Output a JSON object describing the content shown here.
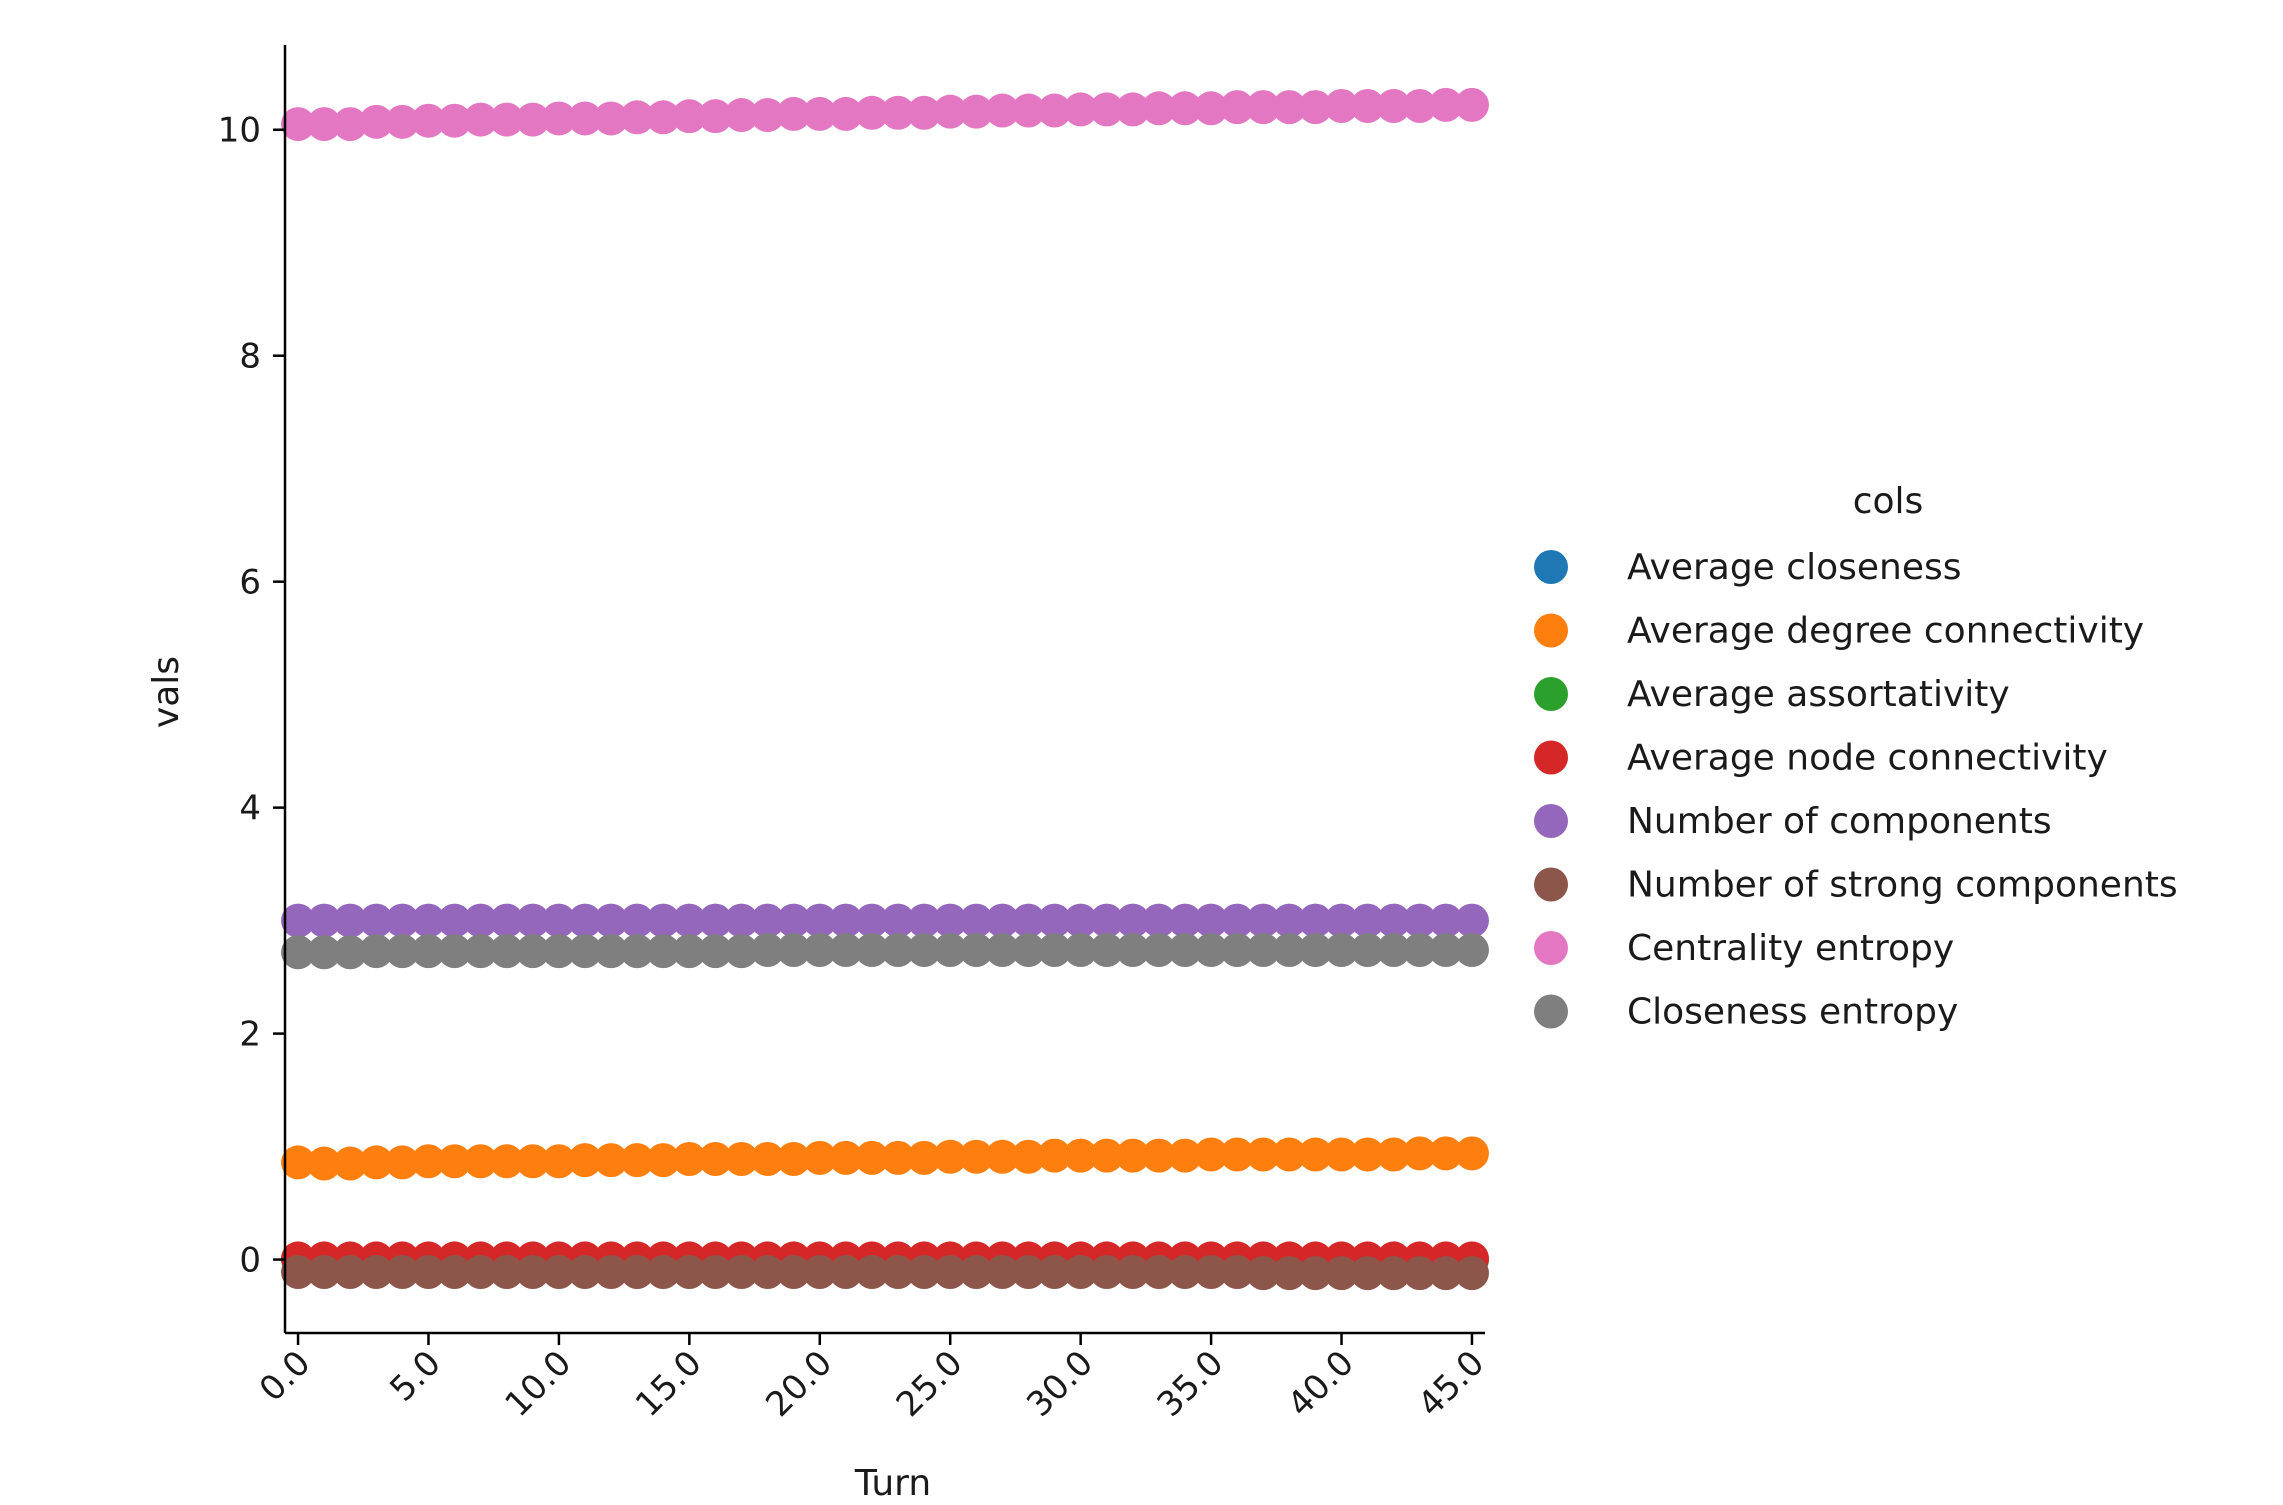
{
  "chart_data": {
    "type": "scatter",
    "title": "",
    "xlabel": "Turn",
    "ylabel": "vals",
    "xlim": [
      -0.5,
      45.5
    ],
    "ylim": [
      -0.65,
      10.75
    ],
    "x_ticks": [
      0,
      5,
      10,
      15,
      20,
      25,
      30,
      35,
      40,
      45
    ],
    "x_tick_labels": [
      "0.0",
      "5.0",
      "10.0",
      "15.0",
      "20.0",
      "25.0",
      "30.0",
      "35.0",
      "40.0",
      "45.0"
    ],
    "y_ticks": [
      0,
      2,
      4,
      6,
      8,
      10
    ],
    "y_tick_labels": [
      "0",
      "2",
      "4",
      "6",
      "8",
      "10"
    ],
    "grid": false,
    "legend": {
      "title": "cols",
      "placement": "right"
    },
    "series": [
      {
        "name": "Average closeness",
        "color": "#1f77b4",
        "values": [
          0.0,
          0.0,
          0.0,
          0.0,
          0.0,
          0.0,
          0.0,
          0.0,
          0.0,
          0.0,
          0.0,
          0.0,
          0.0,
          0.0,
          0.0,
          0.0,
          0.0,
          0.0,
          0.0,
          0.0,
          0.0,
          0.0,
          0.0,
          0.0,
          0.0,
          0.0,
          0.0,
          0.0,
          0.0,
          0.0,
          0.0,
          0.0,
          0.0,
          0.0,
          0.0,
          0.0,
          0.0,
          0.0,
          0.0,
          0.0,
          0.0,
          0.0,
          0.0,
          0.0,
          0.0,
          0.0
        ]
      },
      {
        "name": "Average degree connectivity",
        "color": "#ff7f0e",
        "values": [
          0.86,
          0.85,
          0.85,
          0.86,
          0.86,
          0.87,
          0.87,
          0.87,
          0.87,
          0.87,
          0.87,
          0.88,
          0.88,
          0.88,
          0.88,
          0.89,
          0.89,
          0.89,
          0.89,
          0.89,
          0.9,
          0.9,
          0.9,
          0.9,
          0.9,
          0.91,
          0.91,
          0.91,
          0.91,
          0.92,
          0.92,
          0.92,
          0.92,
          0.92,
          0.92,
          0.93,
          0.93,
          0.93,
          0.93,
          0.93,
          0.93,
          0.93,
          0.93,
          0.94,
          0.94,
          0.94
        ]
      },
      {
        "name": "Average assortativity",
        "color": "#2ca02c",
        "values": [
          0.0,
          0.0,
          0.0,
          0.0,
          0.0,
          0.0,
          0.0,
          0.0,
          0.0,
          0.0,
          0.0,
          0.0,
          0.0,
          0.0,
          0.0,
          0.0,
          0.0,
          0.0,
          0.0,
          0.0,
          0.0,
          0.0,
          0.0,
          0.0,
          0.0,
          0.0,
          0.0,
          0.0,
          0.0,
          0.0,
          0.0,
          0.0,
          0.0,
          0.0,
          0.0,
          0.0,
          0.0,
          0.0,
          0.0,
          0.0,
          0.0,
          0.0,
          0.0,
          0.0,
          0.0,
          0.0
        ]
      },
      {
        "name": "Average node connectivity",
        "color": "#d62728",
        "values": [
          0.01,
          0.01,
          0.01,
          0.01,
          0.01,
          0.01,
          0.01,
          0.01,
          0.01,
          0.01,
          0.01,
          0.01,
          0.01,
          0.01,
          0.01,
          0.01,
          0.01,
          0.01,
          0.01,
          0.01,
          0.01,
          0.01,
          0.01,
          0.01,
          0.01,
          0.01,
          0.01,
          0.01,
          0.01,
          0.01,
          0.01,
          0.01,
          0.01,
          0.01,
          0.01,
          0.01,
          0.01,
          0.01,
          0.01,
          0.01,
          0.01,
          0.01,
          0.01,
          0.01,
          0.01,
          0.01
        ]
      },
      {
        "name": "Number of components",
        "color": "#9467bd",
        "values": [
          3,
          3,
          3,
          3,
          3,
          3,
          3,
          3,
          3,
          3,
          3,
          3,
          3,
          3,
          3,
          3,
          3,
          3,
          3,
          3,
          3,
          3,
          3,
          3,
          3,
          3,
          3,
          3,
          3,
          3,
          3,
          3,
          3,
          3,
          3,
          3,
          3,
          3,
          3,
          3,
          3,
          3,
          3,
          3,
          3,
          3
        ]
      },
      {
        "name": "Number of strong components",
        "color": "#8c564b",
        "values": [
          -0.11,
          -0.11,
          -0.11,
          -0.11,
          -0.11,
          -0.11,
          -0.11,
          -0.11,
          -0.11,
          -0.11,
          -0.11,
          -0.11,
          -0.11,
          -0.11,
          -0.11,
          -0.11,
          -0.11,
          -0.11,
          -0.11,
          -0.11,
          -0.11,
          -0.11,
          -0.11,
          -0.11,
          -0.11,
          -0.11,
          -0.11,
          -0.11,
          -0.11,
          -0.11,
          -0.11,
          -0.11,
          -0.11,
          -0.11,
          -0.11,
          -0.11,
          -0.11,
          -0.12,
          -0.12,
          -0.12,
          -0.12,
          -0.12,
          -0.12,
          -0.12,
          -0.12,
          -0.12
        ]
      },
      {
        "name": "Centrality entropy",
        "color": "#e377c2",
        "values": [
          10.05,
          10.05,
          10.05,
          10.07,
          10.07,
          10.08,
          10.08,
          10.09,
          10.09,
          10.09,
          10.1,
          10.1,
          10.1,
          10.11,
          10.11,
          10.12,
          10.12,
          10.13,
          10.13,
          10.14,
          10.14,
          10.14,
          10.15,
          10.15,
          10.15,
          10.16,
          10.16,
          10.17,
          10.17,
          10.17,
          10.18,
          10.18,
          10.18,
          10.19,
          10.19,
          10.19,
          10.2,
          10.2,
          10.2,
          10.2,
          10.21,
          10.21,
          10.21,
          10.21,
          10.22,
          10.22
        ]
      },
      {
        "name": "Closeness entropy",
        "color": "#7f7f7f",
        "values": [
          2.72,
          2.72,
          2.72,
          2.73,
          2.73,
          2.73,
          2.73,
          2.73,
          2.73,
          2.73,
          2.73,
          2.73,
          2.73,
          2.73,
          2.73,
          2.73,
          2.73,
          2.73,
          2.74,
          2.74,
          2.74,
          2.74,
          2.74,
          2.74,
          2.74,
          2.74,
          2.74,
          2.74,
          2.74,
          2.74,
          2.74,
          2.74,
          2.74,
          2.74,
          2.74,
          2.74,
          2.74,
          2.74,
          2.74,
          2.74,
          2.74,
          2.74,
          2.74,
          2.74,
          2.74,
          2.74
        ]
      }
    ]
  }
}
